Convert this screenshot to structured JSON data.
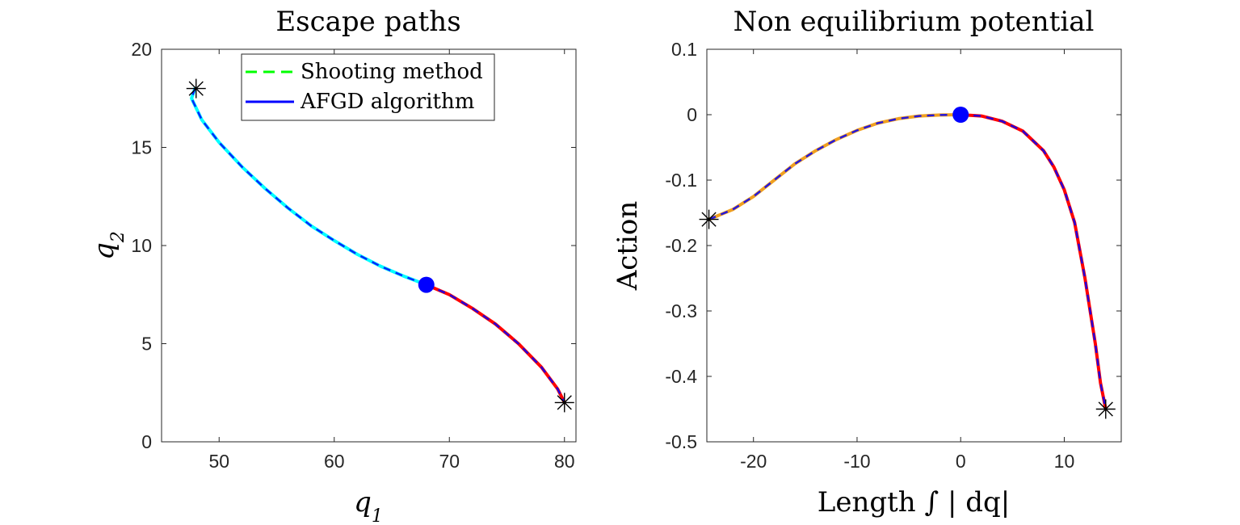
{
  "chart_data": [
    {
      "type": "line",
      "title": "Escape paths",
      "xlabel": "q1",
      "ylabel": "q2",
      "xlim": [
        45,
        81
      ],
      "ylim": [
        0,
        20
      ],
      "xticks": [
        50,
        60,
        70,
        80
      ],
      "yticks": [
        0,
        5,
        10,
        15,
        20
      ],
      "legend": {
        "placement": "top-right",
        "entries": [
          {
            "name": "Shooting method",
            "color": "#00ff00",
            "style": "dashed"
          },
          {
            "name": "AFGD algorithm",
            "color": "#0000ff",
            "style": "solid"
          }
        ]
      },
      "series": [
        {
          "role": "left-branch",
          "color": "#00ffff",
          "x": [
            68,
            66,
            64,
            62,
            60,
            58,
            56,
            54,
            52,
            50,
            48.5,
            47.6,
            47.9
          ],
          "y": [
            8.0,
            8.45,
            8.95,
            9.55,
            10.25,
            11.0,
            11.9,
            12.9,
            14.0,
            15.25,
            16.4,
            17.5,
            18.0
          ]
        },
        {
          "role": "right-branch",
          "color": "#ff0000",
          "x": [
            68,
            70,
            72,
            74,
            76,
            78,
            79.4,
            80
          ],
          "y": [
            8.0,
            7.5,
            6.8,
            6.0,
            5.0,
            3.8,
            2.7,
            2.0
          ]
        }
      ],
      "saddle_point": {
        "x": 68,
        "y": 8,
        "color": "#0000ff"
      },
      "stable_points": [
        {
          "x": 48,
          "y": 18
        },
        {
          "x": 80,
          "y": 2
        }
      ]
    },
    {
      "type": "line",
      "title": "Non equilibrium potential",
      "xlabel": "Length ∫ | dq|",
      "ylabel": "Action",
      "xlim": [
        -24.5,
        15.5
      ],
      "ylim": [
        -0.5,
        0.1
      ],
      "xticks": [
        -20,
        -10,
        0,
        10
      ],
      "yticks": [
        -0.5,
        -0.4,
        -0.3,
        -0.2,
        -0.1,
        0,
        0.1
      ],
      "xtick_labels": [
        "-20",
        "-10",
        "0",
        "10"
      ],
      "ytick_labels": [
        "-0.5",
        "-0.4",
        "-0.3",
        "-0.2",
        "-0.1",
        "0",
        "0.1"
      ],
      "series": [
        {
          "role": "left-branch",
          "color": "#f0a020",
          "x": [
            -24.3,
            -22,
            -20,
            -18,
            -16,
            -14,
            -12,
            -10,
            -8,
            -6,
            -4,
            -2,
            0
          ],
          "y": [
            -0.16,
            -0.145,
            -0.125,
            -0.1,
            -0.075,
            -0.055,
            -0.038,
            -0.024,
            -0.013,
            -0.006,
            -0.002,
            -0.0005,
            0
          ]
        },
        {
          "role": "right-branch",
          "color": "#ff0000",
          "x": [
            0,
            2,
            4,
            6,
            8,
            9,
            10,
            11,
            12,
            13,
            13.5,
            14
          ],
          "y": [
            0,
            -0.002,
            -0.01,
            -0.025,
            -0.055,
            -0.08,
            -0.115,
            -0.165,
            -0.25,
            -0.35,
            -0.41,
            -0.45
          ]
        }
      ],
      "saddle_point": {
        "x": 0,
        "y": 0,
        "color": "#0000ff"
      },
      "stable_points": [
        {
          "x": -24.3,
          "y": -0.16
        },
        {
          "x": 14,
          "y": -0.45
        }
      ]
    }
  ]
}
